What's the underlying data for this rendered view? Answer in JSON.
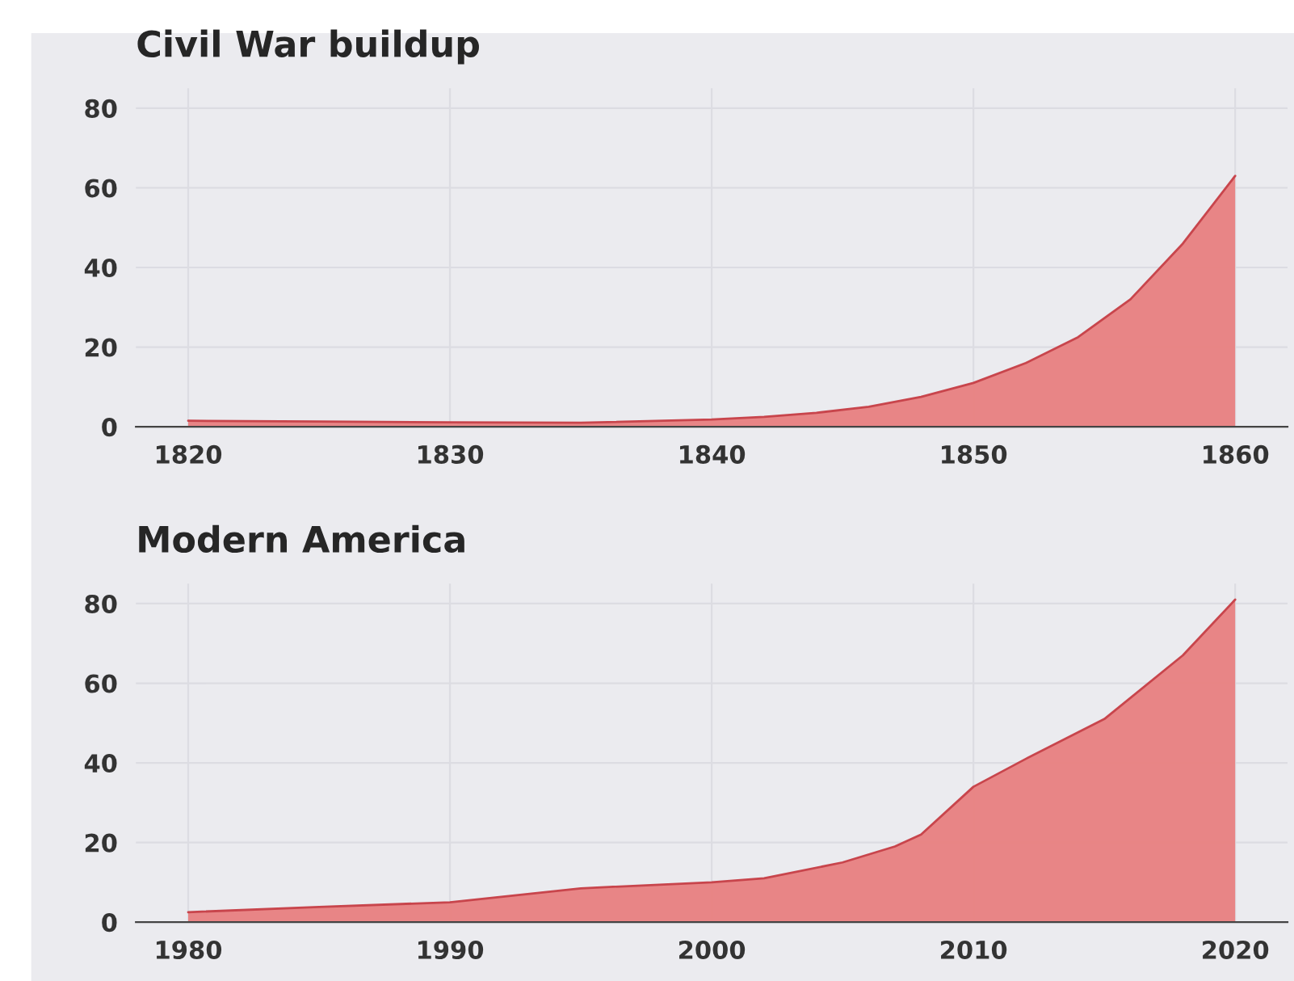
{
  "chart_data": [
    {
      "type": "area",
      "title": "Civil War buildup",
      "x": [
        1820,
        1825,
        1830,
        1835,
        1840,
        1842,
        1844,
        1846,
        1848,
        1850,
        1852,
        1854,
        1856,
        1858,
        1860
      ],
      "series": [
        {
          "color": "#e88080",
          "values": [
            1.5,
            1.3,
            1.1,
            1.0,
            1.8,
            2.5,
            3.5,
            5,
            7.5,
            11,
            16,
            22.5,
            32,
            46,
            63
          ]
        }
      ],
      "xlim": [
        1818,
        1862
      ],
      "xticks": [
        1820,
        1830,
        1840,
        1850,
        1860
      ],
      "ylim": [
        0,
        85
      ],
      "yticks": [
        0,
        20,
        40,
        60,
        80
      ],
      "grid": true,
      "legend": false
    },
    {
      "type": "area",
      "title": "Modern America",
      "x": [
        1980,
        1985,
        1990,
        1995,
        2000,
        2002,
        2005,
        2007,
        2008,
        2010,
        2012,
        2015,
        2018,
        2020
      ],
      "series": [
        {
          "color": "#e88080",
          "values": [
            2.5,
            3.8,
            5,
            8.5,
            10,
            11,
            15,
            19,
            22,
            34,
            41,
            51,
            67,
            81
          ]
        }
      ],
      "xlim": [
        1978,
        2022
      ],
      "xticks": [
        1980,
        1990,
        2000,
        2010,
        2020
      ],
      "ylim": [
        0,
        85
      ],
      "yticks": [
        0,
        20,
        40,
        60,
        80
      ],
      "grid": true,
      "legend": false
    }
  ]
}
